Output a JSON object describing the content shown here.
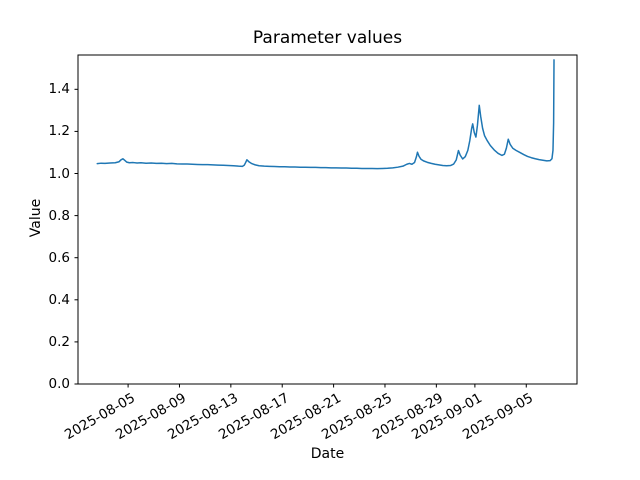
{
  "figure": {
    "background_color": "#ffffff",
    "text_color": "#000000"
  },
  "chart_data": {
    "type": "line",
    "title": "Parameter values",
    "xlabel": "Date",
    "ylabel": "Value",
    "grid": false,
    "legend": null,
    "line_color": "#1f77b4",
    "axis_color": "#000000",
    "x_epoch_date": "2025-08-01",
    "xlim_days": [
      0.1,
      38.95
    ],
    "ylim": [
      0.0,
      1.563
    ],
    "xticks": {
      "days": [
        4,
        8,
        12,
        16,
        20,
        24,
        28,
        31,
        35
      ],
      "labels": [
        "2025-08-05",
        "2025-08-09",
        "2025-08-13",
        "2025-08-17",
        "2025-08-21",
        "2025-08-25",
        "2025-08-29",
        "2025-09-01",
        "2025-09-05"
      ]
    },
    "yticks": {
      "values": [
        0.0,
        0.2,
        0.4,
        0.6,
        0.8,
        1.0,
        1.2,
        1.4
      ],
      "labels": [
        "0.0",
        "0.2",
        "0.4",
        "0.6",
        "0.8",
        "1.0",
        "1.2",
        "1.4"
      ]
    },
    "x_days": [
      1.6,
      1.9,
      2.2,
      2.6,
      3.0,
      3.3,
      3.45,
      3.6,
      3.75,
      3.9,
      4.1,
      4.4,
      4.7,
      5.0,
      5.4,
      5.8,
      6.2,
      6.6,
      7.0,
      7.4,
      7.8,
      8.2,
      8.6,
      9.0,
      9.4,
      9.8,
      10.2,
      10.6,
      11.0,
      11.4,
      11.8,
      12.2,
      12.6,
      12.9,
      13.05,
      13.15,
      13.25,
      13.4,
      13.6,
      13.9,
      14.2,
      14.6,
      15.0,
      15.4,
      15.8,
      16.2,
      16.6,
      17.0,
      17.4,
      17.8,
      18.2,
      18.6,
      19.0,
      19.4,
      19.8,
      20.2,
      20.6,
      21.0,
      21.4,
      21.8,
      22.2,
      22.6,
      23.0,
      23.4,
      23.8,
      24.2,
      24.6,
      25.0,
      25.4,
      25.7,
      25.9,
      26.1,
      26.3,
      26.45,
      26.53,
      26.65,
      26.8,
      27.0,
      27.3,
      27.6,
      27.9,
      28.2,
      28.5,
      28.8,
      29.1,
      29.35,
      29.55,
      29.72,
      29.85,
      30.05,
      30.25,
      30.45,
      30.6,
      30.75,
      30.83,
      30.95,
      31.08,
      31.2,
      31.34,
      31.45,
      31.6,
      31.75,
      31.95,
      32.2,
      32.5,
      32.8,
      33.1,
      33.3,
      33.45,
      33.6,
      33.75,
      33.95,
      34.2,
      34.5,
      34.8,
      35.1,
      35.4,
      35.7,
      36.0,
      36.3,
      36.6,
      36.85,
      37.0,
      37.08,
      37.13,
      37.16
    ],
    "values": [
      1.047,
      1.049,
      1.048,
      1.05,
      1.051,
      1.056,
      1.065,
      1.07,
      1.062,
      1.054,
      1.051,
      1.052,
      1.05,
      1.051,
      1.049,
      1.05,
      1.048,
      1.049,
      1.047,
      1.048,
      1.046,
      1.045,
      1.045,
      1.044,
      1.043,
      1.042,
      1.042,
      1.041,
      1.04,
      1.039,
      1.038,
      1.037,
      1.035,
      1.034,
      1.04,
      1.052,
      1.065,
      1.056,
      1.048,
      1.041,
      1.037,
      1.035,
      1.034,
      1.033,
      1.032,
      1.032,
      1.031,
      1.031,
      1.03,
      1.03,
      1.029,
      1.029,
      1.028,
      1.028,
      1.027,
      1.027,
      1.026,
      1.026,
      1.025,
      1.025,
      1.024,
      1.024,
      1.024,
      1.023,
      1.024,
      1.025,
      1.027,
      1.03,
      1.035,
      1.044,
      1.048,
      1.044,
      1.052,
      1.08,
      1.101,
      1.082,
      1.068,
      1.06,
      1.053,
      1.048,
      1.044,
      1.041,
      1.038,
      1.037,
      1.038,
      1.045,
      1.065,
      1.109,
      1.088,
      1.069,
      1.08,
      1.11,
      1.155,
      1.215,
      1.236,
      1.195,
      1.173,
      1.23,
      1.324,
      1.272,
      1.215,
      1.18,
      1.157,
      1.133,
      1.112,
      1.096,
      1.086,
      1.092,
      1.12,
      1.163,
      1.138,
      1.12,
      1.11,
      1.1,
      1.09,
      1.081,
      1.075,
      1.07,
      1.066,
      1.063,
      1.06,
      1.061,
      1.07,
      1.11,
      1.24,
      1.54
    ]
  }
}
